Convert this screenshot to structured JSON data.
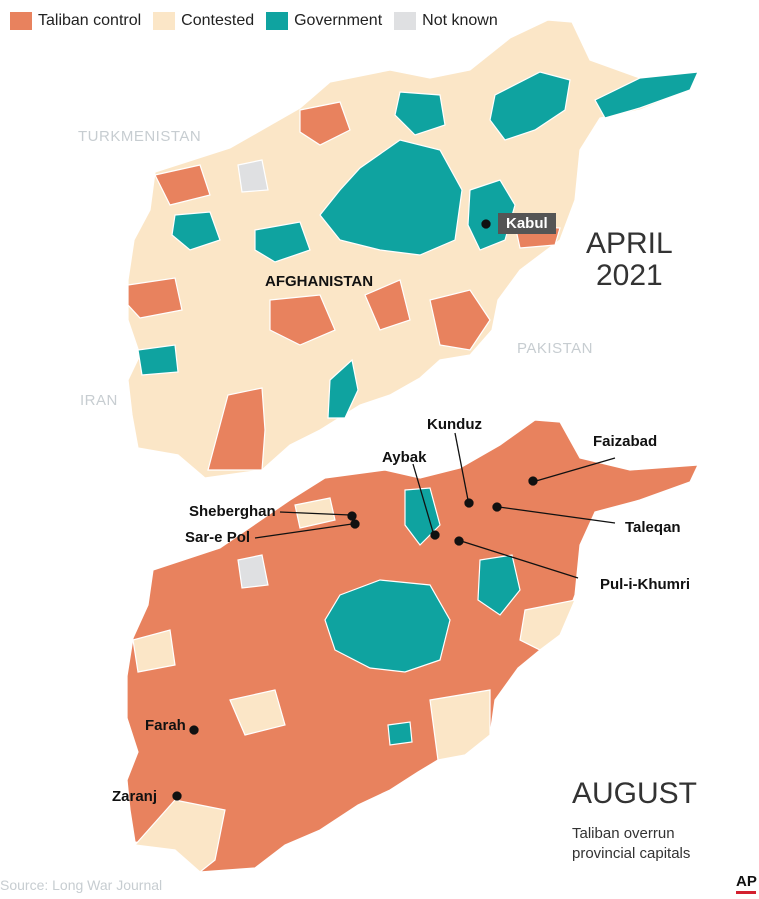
{
  "legend": [
    {
      "label": "Taliban control",
      "color": "#e8825e"
    },
    {
      "label": "Contested",
      "color": "#fbe6c7"
    },
    {
      "label": "Government",
      "color": "#0fa3a0"
    },
    {
      "label": "Not known",
      "color": "#dfe0e2"
    }
  ],
  "colors": {
    "taliban": "#e8825e",
    "contested": "#fbe6c7",
    "government": "#0fa3a0",
    "unknown": "#dfe0e2",
    "border": "#ffffff"
  },
  "top_map": {
    "countries": {
      "turkmenistan": "TURKMENISTAN",
      "iran": "IRAN",
      "pakistan": "PAKISTAN"
    },
    "afghanistan_label": "AFGHANISTAN",
    "capital": "Kabul",
    "period_month": "APRIL",
    "period_year": "2021"
  },
  "bottom_map": {
    "period": "AUGUST",
    "note_line1": "Taliban overrun",
    "note_line2": "provincial capitals",
    "cities": {
      "kunduz": "Kunduz",
      "faizabad": "Faizabad",
      "aybak": "Aybak",
      "sheberghan": "Sheberghan",
      "sare_pol": "Sar-e Pol",
      "taleqan": "Taleqan",
      "pul_i_khumri": "Pul-i-Khumri",
      "farah": "Farah",
      "zaranj": "Zaranj"
    }
  },
  "source": "Source: Long War Journal",
  "credit": "AP"
}
